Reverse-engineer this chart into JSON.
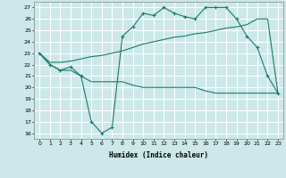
{
  "xlabel": "Humidex (Indice chaleur)",
  "bg_color": "#cce8e8",
  "grid_color": "#ffffff",
  "line_color": "#1a7a6e",
  "x_ticks": [
    0,
    1,
    2,
    3,
    4,
    5,
    6,
    7,
    8,
    9,
    10,
    11,
    12,
    13,
    14,
    15,
    16,
    17,
    18,
    19,
    20,
    21,
    22,
    23
  ],
  "y_ticks": [
    16,
    17,
    18,
    19,
    20,
    21,
    22,
    23,
    24,
    25,
    26,
    27
  ],
  "xlim": [
    -0.5,
    23.5
  ],
  "ylim": [
    15.5,
    27.5
  ],
  "curves": [
    {
      "x": [
        0,
        1,
        2,
        3,
        4,
        5,
        6,
        7,
        8,
        9,
        10,
        11,
        12,
        13,
        14,
        15,
        16,
        17,
        18,
        19,
        20,
        21,
        22,
        23
      ],
      "y": [
        23,
        22,
        21.5,
        21.5,
        21,
        20.5,
        20.5,
        20.5,
        20.5,
        20.2,
        20,
        20,
        20,
        20,
        20,
        20,
        19.7,
        19.5,
        19.5,
        19.5,
        19.5,
        19.5,
        19.5,
        19.5
      ],
      "marker": false
    },
    {
      "x": [
        0,
        1,
        2,
        3,
        4,
        5,
        6,
        7,
        8,
        9,
        10,
        11,
        12,
        13,
        14,
        15,
        16,
        17,
        18,
        19,
        20,
        21,
        22,
        23
      ],
      "y": [
        23,
        22.2,
        22.2,
        22.3,
        22.5,
        22.7,
        22.8,
        23,
        23.2,
        23.5,
        23.8,
        24,
        24.2,
        24.4,
        24.5,
        24.7,
        24.8,
        25,
        25.2,
        25.3,
        25.5,
        26,
        26,
        19.5
      ],
      "marker": false
    },
    {
      "x": [
        0,
        1,
        2,
        3,
        4,
        5,
        6,
        7,
        8,
        9,
        10,
        11,
        12,
        13,
        14,
        15,
        16,
        17,
        18,
        19,
        20,
        21,
        22,
        23
      ],
      "y": [
        23,
        22,
        21.5,
        21.8,
        21,
        17,
        16,
        16.5,
        24.5,
        25.3,
        26.5,
        26.3,
        27,
        26.5,
        26.2,
        26,
        27,
        27,
        27,
        26,
        24.5,
        23.5,
        21,
        19.5
      ],
      "marker": true
    }
  ]
}
